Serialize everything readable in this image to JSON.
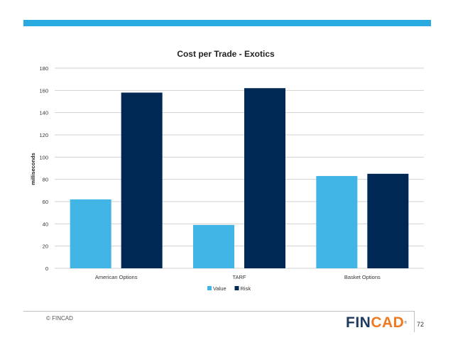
{
  "theme": {
    "bar_color": "#29abe2",
    "value_color": "#41b6e6",
    "risk_color": "#002855",
    "grid_color": "#d0d0d0"
  },
  "chart_data": {
    "type": "bar",
    "title": "Cost per Trade - Exotics",
    "xlabel": "",
    "ylabel": "milliseconds",
    "categories": [
      "American Options",
      "TARF",
      "Basket Options"
    ],
    "series": [
      {
        "name": "Value",
        "values": [
          62,
          39,
          83
        ],
        "color": "#41b6e6"
      },
      {
        "name": "Risk",
        "values": [
          158,
          162,
          85
        ],
        "color": "#002855"
      }
    ],
    "ylim": [
      0,
      180
    ],
    "yticks": [
      0,
      20,
      40,
      60,
      80,
      100,
      120,
      140,
      160,
      180
    ],
    "grid": true,
    "legend": "bottom"
  },
  "footer": {
    "copyright": "© FINCAD",
    "logo_part1": "FIN",
    "logo_part2": "CAD",
    "page_number": "72"
  }
}
